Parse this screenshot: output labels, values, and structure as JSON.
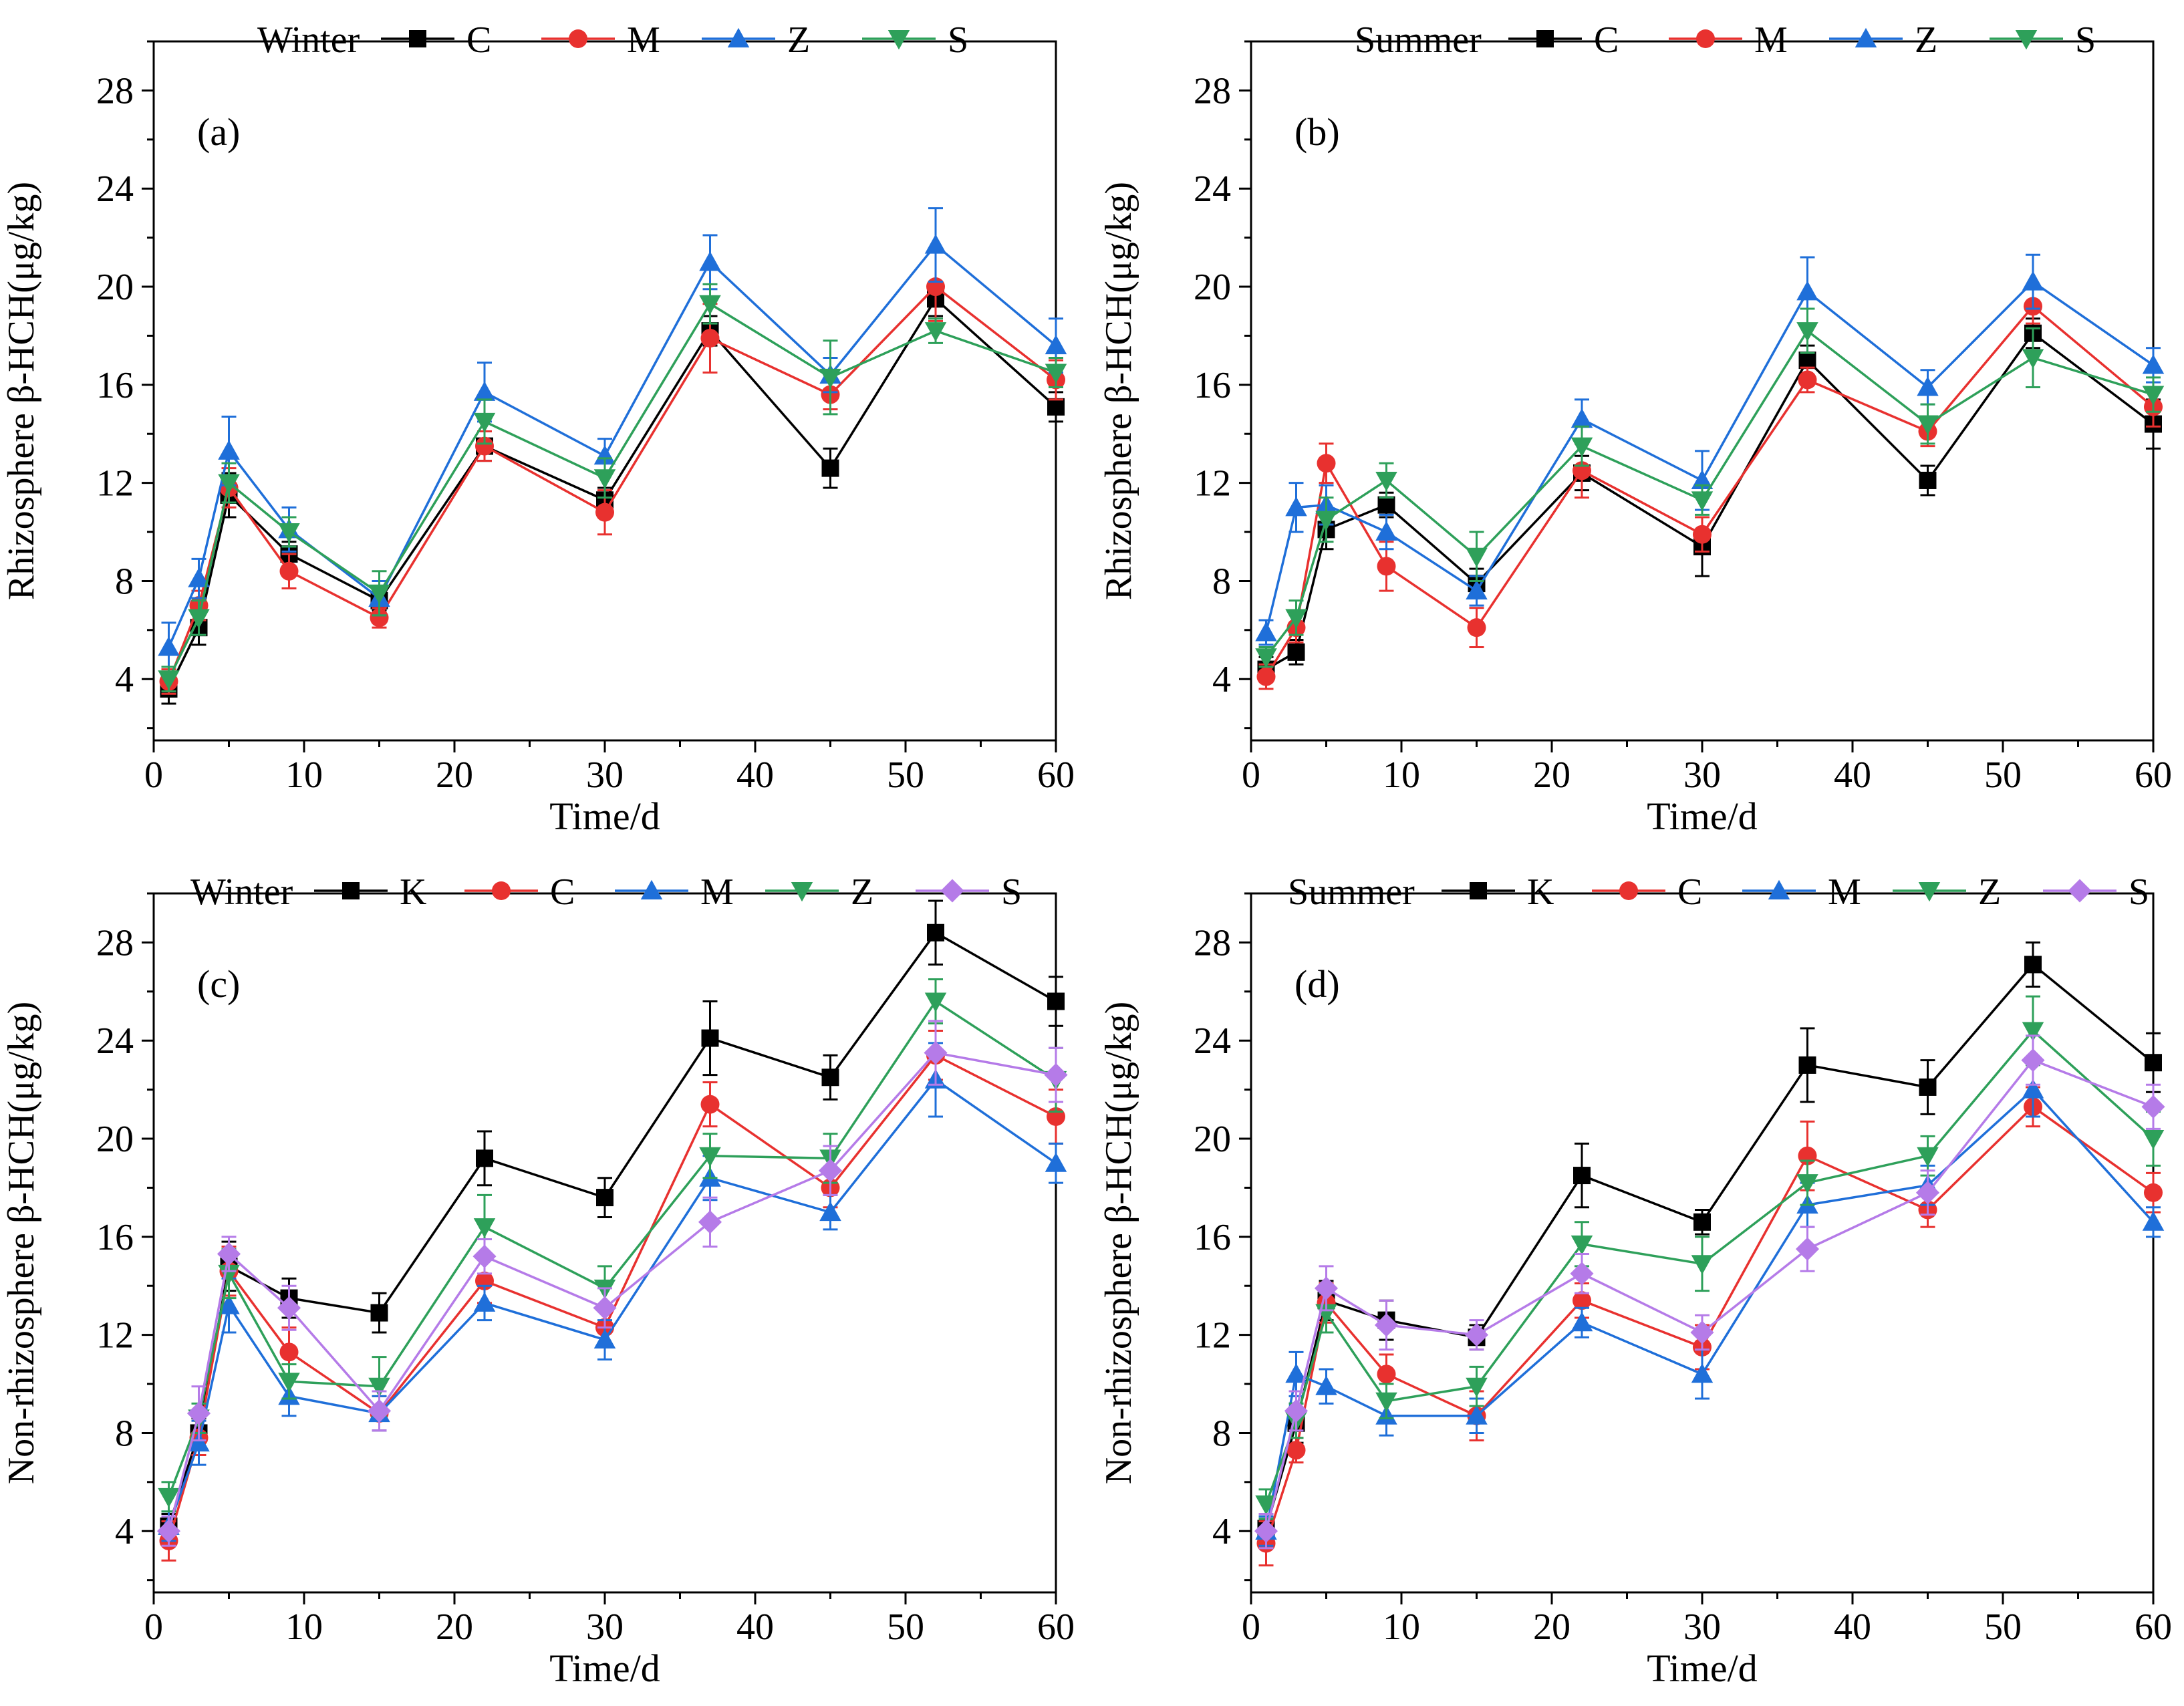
{
  "figure": {
    "name": "rhizosphere beta-HCH time courses"
  },
  "styles": {
    "C": {
      "color": "#000000",
      "marker": "square"
    },
    "M": {
      "color": "#e8312f",
      "marker": "circle"
    },
    "Z": {
      "color": "#1f6fd9",
      "marker": "triangle-up"
    },
    "S": {
      "color": "#2ea05a",
      "marker": "triangle-down"
    },
    "K": {
      "color": "#000000",
      "marker": "square"
    },
    "C2": {
      "color": "#e8312f",
      "marker": "circle"
    },
    "M2": {
      "color": "#1f6fd9",
      "marker": "triangle-up"
    },
    "Z2": {
      "color": "#2ea05a",
      "marker": "triangle-down"
    },
    "S2": {
      "color": "#b57be8",
      "marker": "diamond"
    }
  },
  "chart_data": [
    {
      "type": "line",
      "panel_label": "(a)",
      "legend_title": "Winter",
      "xlabel": "Time/d",
      "ylabel": "Rhizosphere β-HCH(μg/kg)",
      "xlim": [
        0,
        60
      ],
      "ylim": [
        1.5,
        30
      ],
      "xticks": [
        0,
        10,
        20,
        30,
        40,
        50,
        60
      ],
      "yticks": [
        4,
        8,
        12,
        16,
        20,
        24,
        28
      ],
      "x": [
        1,
        3,
        5,
        9,
        15,
        22,
        30,
        37,
        45,
        52,
        60
      ],
      "series": [
        {
          "name": "C",
          "style": "C",
          "values": [
            3.6,
            6.1,
            11.5,
            9.1,
            7.2,
            13.5,
            11.3,
            18.2,
            12.6,
            19.5,
            15.1
          ],
          "errors": [
            0.6,
            0.7,
            0.9,
            0.5,
            0.4,
            0.6,
            0.5,
            0.6,
            0.8,
            0.7,
            0.6
          ]
        },
        {
          "name": "M",
          "style": "M",
          "values": [
            3.9,
            7.0,
            11.8,
            8.4,
            6.5,
            13.5,
            10.8,
            17.9,
            15.6,
            20.0,
            16.2
          ],
          "errors": [
            0.5,
            0.6,
            0.8,
            0.7,
            0.4,
            0.6,
            0.9,
            1.4,
            0.6,
            1.4,
            0.8
          ]
        },
        {
          "name": "Z",
          "style": "Z",
          "values": [
            5.3,
            8.1,
            13.3,
            10.1,
            7.3,
            15.7,
            13.1,
            21.0,
            16.4,
            21.7,
            17.6
          ],
          "errors": [
            1.0,
            0.8,
            1.4,
            0.9,
            0.7,
            1.2,
            0.7,
            1.1,
            0.7,
            1.5,
            1.1
          ]
        },
        {
          "name": "S",
          "style": "S",
          "values": [
            4.0,
            6.5,
            12.0,
            10.0,
            7.5,
            14.5,
            12.2,
            19.3,
            16.3,
            18.2,
            16.5
          ],
          "errors": [
            0.5,
            0.7,
            0.8,
            0.6,
            0.9,
            0.9,
            0.8,
            0.8,
            1.5,
            0.5,
            0.6
          ]
        }
      ]
    },
    {
      "type": "line",
      "panel_label": "(b)",
      "legend_title": "Summer",
      "xlabel": "Time/d",
      "ylabel": "Rhizosphere β-HCH(μg/kg)",
      "xlim": [
        0,
        60
      ],
      "ylim": [
        1.5,
        30
      ],
      "xticks": [
        0,
        10,
        20,
        30,
        40,
        50,
        60
      ],
      "yticks": [
        4,
        8,
        12,
        16,
        20,
        24,
        28
      ],
      "x": [
        1,
        3,
        5,
        9,
        15,
        22,
        30,
        37,
        45,
        52,
        60
      ],
      "series": [
        {
          "name": "C",
          "style": "C",
          "values": [
            4.4,
            5.1,
            10.1,
            11.1,
            7.9,
            12.4,
            9.4,
            17.0,
            12.1,
            18.1,
            14.4
          ],
          "errors": [
            0.5,
            0.5,
            0.8,
            0.5,
            0.6,
            0.7,
            1.2,
            0.6,
            0.6,
            0.6,
            1.0
          ]
        },
        {
          "name": "M",
          "style": "M",
          "values": [
            4.1,
            6.1,
            12.8,
            8.6,
            6.1,
            12.5,
            9.9,
            16.2,
            14.1,
            19.2,
            15.1
          ],
          "errors": [
            0.5,
            0.6,
            0.8,
            1.0,
            0.8,
            1.1,
            0.7,
            0.5,
            0.6,
            0.7,
            0.8
          ]
        },
        {
          "name": "Z",
          "style": "Z",
          "values": [
            5.9,
            11.0,
            11.1,
            10.0,
            7.6,
            14.6,
            12.1,
            19.8,
            15.9,
            20.2,
            16.8
          ],
          "errors": [
            0.5,
            1.0,
            0.8,
            0.7,
            0.6,
            0.8,
            1.2,
            1.4,
            0.7,
            1.1,
            0.7
          ]
        },
        {
          "name": "S",
          "style": "S",
          "values": [
            4.9,
            6.5,
            10.5,
            12.1,
            9.0,
            13.5,
            11.3,
            18.2,
            14.4,
            17.1,
            15.6
          ],
          "errors": [
            0.4,
            0.7,
            0.9,
            0.7,
            1.0,
            0.8,
            0.6,
            0.9,
            0.8,
            1.2,
            0.7
          ]
        }
      ]
    },
    {
      "type": "line",
      "panel_label": "(c)",
      "legend_title": "Winter",
      "xlabel": "Time/d",
      "ylabel": "Non-rhizosphere β-HCH(μg/kg)",
      "xlim": [
        0,
        60
      ],
      "ylim": [
        1.5,
        30
      ],
      "xticks": [
        0,
        10,
        20,
        30,
        40,
        50,
        60
      ],
      "yticks": [
        4,
        8,
        12,
        16,
        20,
        24,
        28
      ],
      "x": [
        1,
        3,
        5,
        9,
        15,
        22,
        30,
        37,
        45,
        52,
        60
      ],
      "series": [
        {
          "name": "K",
          "style": "K",
          "values": [
            4.2,
            8.0,
            14.8,
            13.5,
            12.9,
            19.2,
            17.6,
            24.1,
            22.5,
            28.4,
            25.6
          ],
          "errors": [
            0.5,
            0.6,
            1.0,
            0.8,
            0.8,
            1.1,
            0.8,
            1.5,
            0.9,
            1.3,
            1.0
          ]
        },
        {
          "name": "C",
          "style": "C2",
          "values": [
            3.6,
            7.8,
            14.6,
            11.3,
            8.8,
            14.2,
            12.3,
            21.4,
            18.0,
            23.4,
            20.9
          ],
          "errors": [
            0.8,
            0.7,
            1.0,
            1.0,
            0.7,
            0.9,
            0.8,
            0.9,
            0.8,
            1.0,
            1.1
          ]
        },
        {
          "name": "M",
          "style": "M2",
          "values": [
            4.2,
            7.6,
            13.2,
            9.5,
            8.8,
            13.3,
            11.8,
            18.4,
            17.0,
            22.4,
            19.0
          ],
          "errors": [
            0.6,
            0.9,
            1.1,
            0.8,
            0.7,
            0.7,
            0.8,
            0.9,
            0.7,
            1.5,
            0.8
          ]
        },
        {
          "name": "Z",
          "style": "Z2",
          "values": [
            5.4,
            8.6,
            14.5,
            10.1,
            9.9,
            16.4,
            13.9,
            19.3,
            19.2,
            25.6,
            22.4
          ],
          "errors": [
            0.6,
            0.6,
            1.0,
            0.7,
            1.2,
            1.3,
            0.9,
            0.9,
            1.0,
            0.9,
            1.3
          ]
        },
        {
          "name": "S",
          "style": "S2",
          "values": [
            4.0,
            8.8,
            15.3,
            13.1,
            8.9,
            15.2,
            13.1,
            16.6,
            18.7,
            23.5,
            22.6
          ],
          "errors": [
            0.6,
            1.1,
            0.7,
            0.9,
            0.8,
            0.7,
            0.8,
            1.0,
            1.0,
            1.3,
            1.1
          ]
        }
      ]
    },
    {
      "type": "line",
      "panel_label": "(d)",
      "legend_title": "Summer",
      "xlabel": "Time/d",
      "ylabel": "Non-rhizosphere β-HCH(μg/kg)",
      "xlim": [
        0,
        60
      ],
      "ylim": [
        1.5,
        30
      ],
      "xticks": [
        0,
        10,
        20,
        30,
        40,
        50,
        60
      ],
      "yticks": [
        4,
        8,
        12,
        16,
        20,
        24,
        28
      ],
      "x": [
        1,
        3,
        5,
        9,
        15,
        22,
        30,
        37,
        45,
        52,
        60
      ],
      "series": [
        {
          "name": "K",
          "style": "K",
          "values": [
            4.1,
            8.4,
            13.4,
            12.6,
            11.9,
            18.5,
            16.6,
            23.0,
            22.1,
            27.1,
            23.1
          ],
          "errors": [
            0.5,
            0.8,
            0.8,
            0.8,
            0.5,
            1.3,
            0.5,
            1.5,
            1.1,
            0.9,
            1.2
          ]
        },
        {
          "name": "C",
          "style": "C2",
          "values": [
            3.5,
            7.3,
            13.3,
            10.4,
            8.7,
            13.4,
            11.5,
            19.3,
            17.1,
            21.3,
            17.8
          ],
          "errors": [
            0.9,
            0.5,
            0.8,
            0.8,
            1.0,
            0.7,
            0.9,
            1.4,
            0.7,
            0.8,
            0.8
          ]
        },
        {
          "name": "M",
          "style": "M2",
          "values": [
            4.0,
            10.4,
            9.9,
            8.7,
            8.7,
            12.5,
            10.4,
            17.3,
            18.1,
            22.0,
            16.6
          ],
          "errors": [
            0.6,
            0.9,
            0.7,
            0.8,
            0.7,
            0.6,
            1.0,
            0.9,
            0.8,
            1.1,
            0.6
          ]
        },
        {
          "name": "Z",
          "style": "Z2",
          "values": [
            5.1,
            8.5,
            12.9,
            9.3,
            9.9,
            15.7,
            14.9,
            18.2,
            19.3,
            24.4,
            20.0
          ],
          "errors": [
            0.6,
            0.7,
            0.8,
            0.7,
            0.8,
            0.9,
            1.1,
            0.9,
            0.8,
            1.4,
            1.1
          ]
        },
        {
          "name": "S",
          "style": "S2",
          "values": [
            4.0,
            8.9,
            13.9,
            12.4,
            12.0,
            14.5,
            12.1,
            15.5,
            17.8,
            23.2,
            21.3
          ],
          "errors": [
            0.7,
            0.8,
            0.9,
            1.0,
            0.6,
            0.8,
            0.7,
            0.9,
            0.9,
            1.0,
            0.9
          ]
        }
      ]
    }
  ]
}
